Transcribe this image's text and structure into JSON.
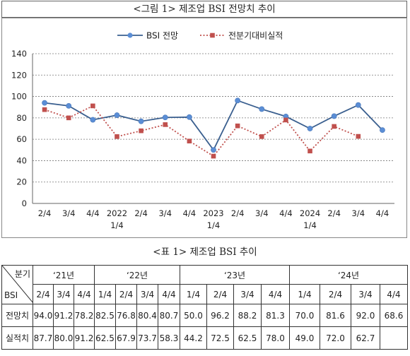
{
  "figure": {
    "title": "<그림 1> 제조업 BSI 전망치 추이"
  },
  "chart_data": {
    "type": "line",
    "categories": [
      "2/4",
      "3/4",
      "4/4",
      "2022\n1/4",
      "2/4",
      "3/4",
      "4/4",
      "2023\n1/4",
      "2/4",
      "3/4",
      "4/4",
      "2024\n1/4",
      "2/4",
      "3/4",
      "4/4"
    ],
    "ylim": [
      0,
      140
    ],
    "yticks": [
      0,
      20,
      40,
      60,
      80,
      100,
      120,
      140
    ],
    "grid": true,
    "legend_position": "top",
    "series": [
      {
        "name": "BSI 전망",
        "color": "#3a5f8f",
        "marker_color": "#5b8ed6",
        "style": "solid",
        "values": [
          94.0,
          91.2,
          78.2,
          82.5,
          76.8,
          80.4,
          80.7,
          50.0,
          96.2,
          88.2,
          81.3,
          70.0,
          81.6,
          92.0,
          68.6
        ]
      },
      {
        "name": "전분기대비실적",
        "color": "#c0504d",
        "marker_color": "#c0504d",
        "style": "dotted",
        "values": [
          87.7,
          80.0,
          91.2,
          62.5,
          67.9,
          73.7,
          58.3,
          44.2,
          72.5,
          62.5,
          78.0,
          49.0,
          72.0,
          62.7,
          null
        ]
      }
    ]
  },
  "table": {
    "title": "<표 1> 제조업 BSI 추이",
    "corner_top": "분기",
    "corner_bottom": "BSI",
    "years": [
      "‘21년",
      "‘22년",
      "‘23년",
      "‘24년"
    ],
    "quarters": [
      "2/4",
      "3/4",
      "4/4",
      "1/4",
      "2/4",
      "3/4",
      "4/4",
      "1/4",
      "2/4",
      "3/4",
      "4/4",
      "1/4",
      "2/4",
      "3/4",
      "4/4"
    ],
    "rows": [
      {
        "label": "전망치",
        "values": [
          "94.0",
          "91.2",
          "78.2",
          "82.5",
          "76.8",
          "80.4",
          "80.7",
          "50.0",
          "96.2",
          "88.2",
          "81.3",
          "70.0",
          "81.6",
          "92.0",
          "68.6"
        ]
      },
      {
        "label": "실적치",
        "values": [
          "87.7",
          "80.0",
          "91.2",
          "62.5",
          "67.9",
          "73.7",
          "58.3",
          "44.2",
          "72.5",
          "62.5",
          "78.0",
          "49.0",
          "72.0",
          "62.7",
          ""
        ]
      }
    ]
  }
}
